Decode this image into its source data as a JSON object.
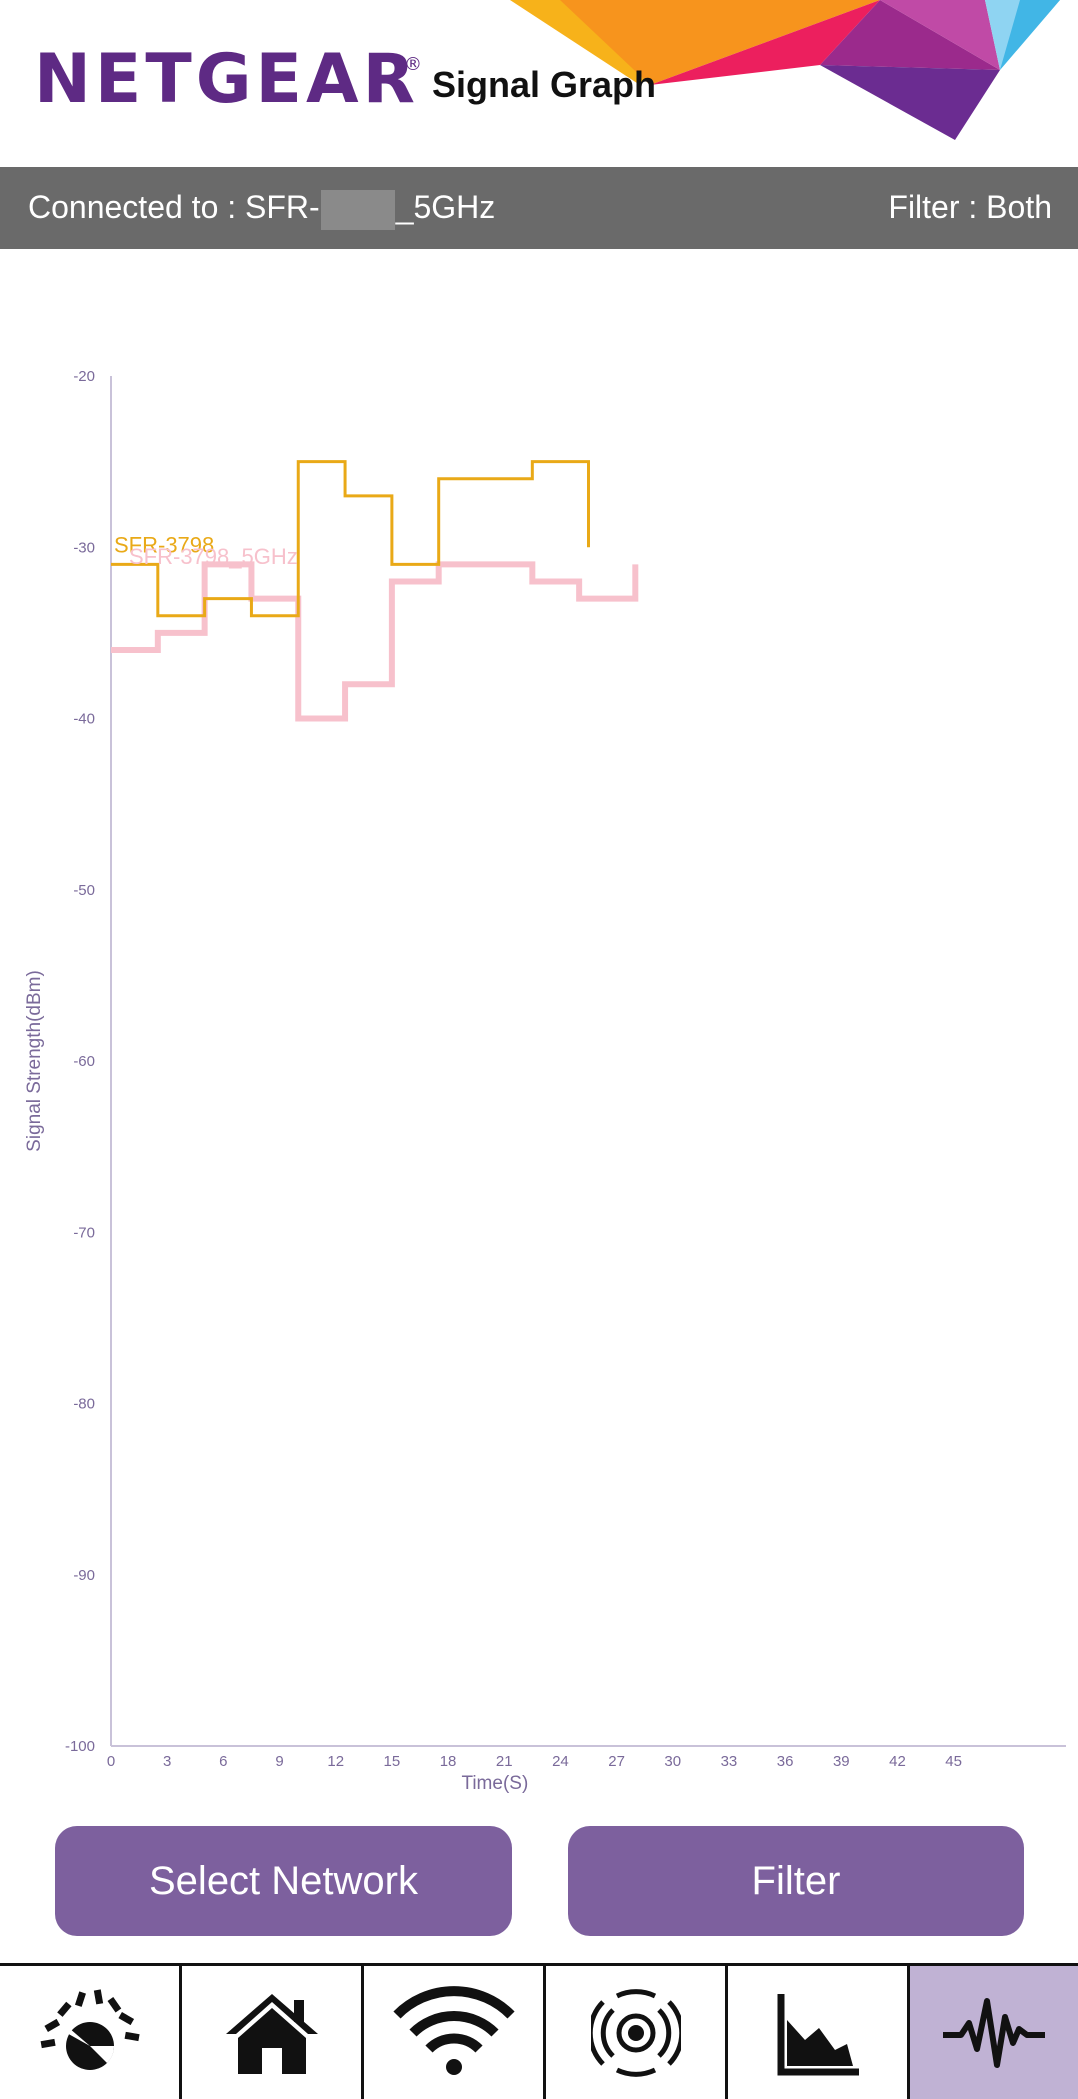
{
  "header": {
    "brand": "NETGEAR",
    "registered_mark": "®",
    "title": "Signal Graph"
  },
  "status": {
    "connected_prefix": "Connected to : SFR-",
    "connected_suffix": "_5GHz",
    "filter_text": "Filter : Both"
  },
  "chart_data": {
    "type": "line",
    "step": true,
    "xlabel": "Time(S)",
    "ylabel": "Signal Strength(dBm)",
    "x_ticks": [
      "0",
      "3",
      "6",
      "9",
      "12",
      "15",
      "18",
      "21",
      "24",
      "27",
      "30",
      "33",
      "36",
      "39",
      "42",
      "45"
    ],
    "y_ticks": [
      "-20",
      "-30",
      "-40",
      "-50",
      "-60",
      "-70",
      "-80",
      "-90",
      "-100"
    ],
    "xlim": [
      0,
      51
    ],
    "ylim": [
      -100,
      -20
    ],
    "series": [
      {
        "name": "SFR-3798",
        "color": "#e9a917",
        "x": [
          0,
          2.5,
          5,
          7.5,
          10,
          12.5,
          15,
          17.5,
          20,
          22.5,
          25.5
        ],
        "y": [
          -31,
          -34,
          -33,
          -34,
          -25,
          -27,
          -31,
          -26,
          -26,
          -25,
          -30
        ]
      },
      {
        "name": "SFR-3798_5GHz",
        "color": "#f7c1cc",
        "x": [
          0,
          2.5,
          5,
          7.5,
          10,
          12.5,
          15,
          17.5,
          20,
          22.5,
          25,
          28
        ],
        "y": [
          -36,
          -35,
          -31,
          -33,
          -40,
          -38,
          -32,
          -31,
          -31,
          -32,
          -33,
          -31
        ]
      }
    ]
  },
  "buttons": {
    "select_network": "Select Network",
    "filter": "Filter"
  },
  "nav": {
    "items": [
      {
        "icon": "speedometer-icon",
        "active": false
      },
      {
        "icon": "home-icon",
        "active": false
      },
      {
        "icon": "wifi-icon",
        "active": false
      },
      {
        "icon": "signal-broadcast-icon",
        "active": false
      },
      {
        "icon": "area-chart-icon",
        "active": false
      },
      {
        "icon": "waveform-icon",
        "active": true
      }
    ]
  },
  "colors": {
    "brand_purple": "#5e2a84",
    "button_purple": "#7d609e",
    "status_bar": "#6a6a6a",
    "axis": "#7a6a9a",
    "nav_active": "#c0b2d4"
  }
}
